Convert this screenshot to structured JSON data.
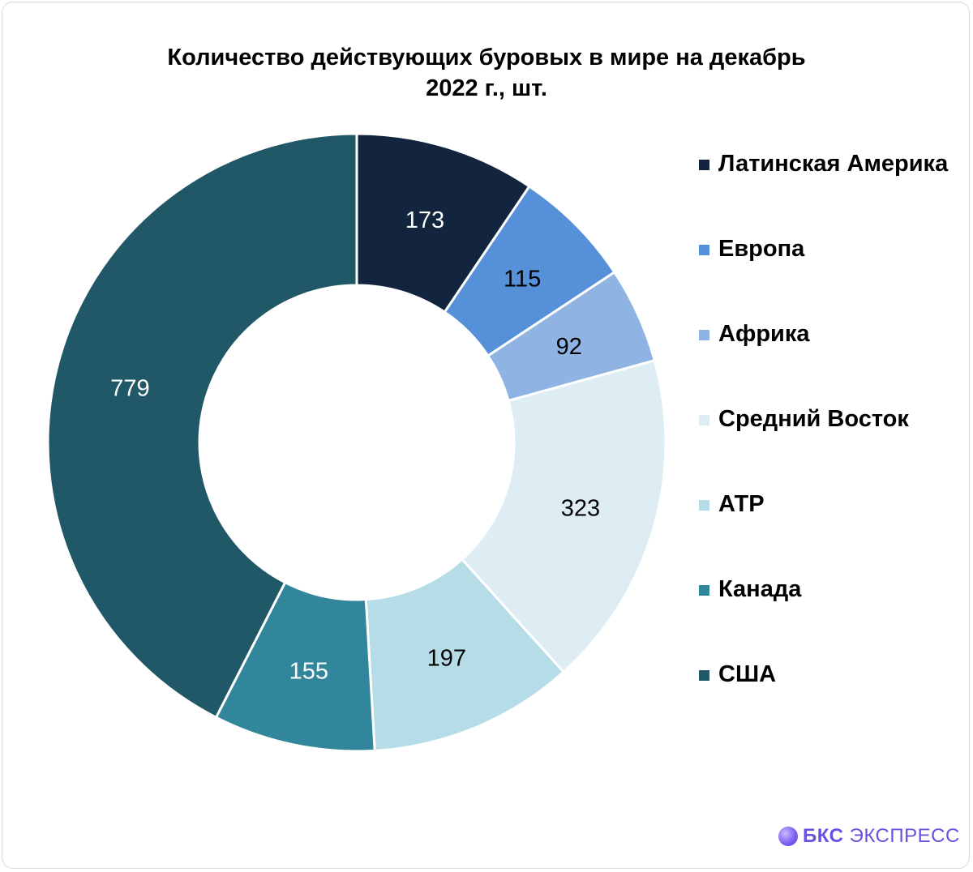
{
  "title_line1": "Количество действующих буровых в мире на декабрь",
  "title_line2": "2022 г., шт.",
  "chart_data": {
    "type": "pie",
    "donut": true,
    "categories": [
      "Латинская Америка",
      "Европа",
      "Африка",
      "Средний Восток",
      "АТР",
      "Канада",
      "США"
    ],
    "values": [
      173,
      115,
      92,
      323,
      197,
      155,
      779
    ],
    "colors": [
      "#13243f",
      "#5690d8",
      "#8fb4e3",
      "#ddedf3",
      "#b6dde7",
      "#31869b",
      "#215867"
    ],
    "label_colors": [
      "#ffffff",
      "#000000",
      "#000000",
      "#000000",
      "#000000",
      "#ffffff",
      "#ffffff"
    ],
    "legend_position": "right"
  },
  "legend": [
    "Латинская Америка",
    "Европа",
    "Африка",
    "Средний Восток",
    "АТР",
    "Канада",
    "США"
  ],
  "brand": {
    "strong": "БКС",
    "rest": " ЭКСПРЕСС",
    "color": "#6b4fe0"
  }
}
